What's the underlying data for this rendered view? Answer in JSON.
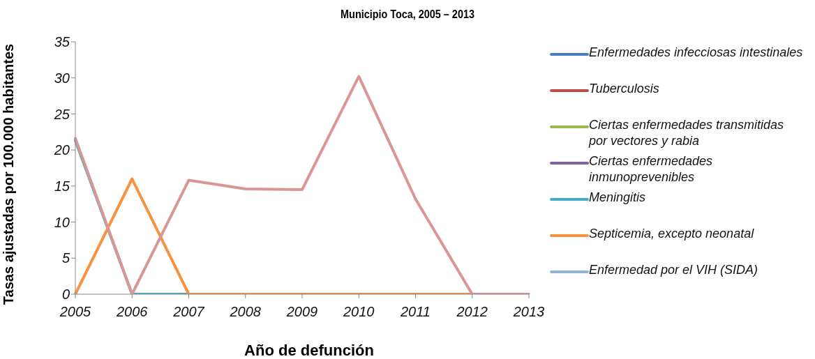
{
  "chart_data": {
    "type": "line",
    "title": "Municipio Toca, 2005 – 2013",
    "xlabel": "Año de defunción",
    "ylabel": "Tasas ajustadas por 100.000 habitantes",
    "categories": [
      "2005",
      "2006",
      "2007",
      "2008",
      "2009",
      "2010",
      "2011",
      "2012",
      "2013"
    ],
    "ylim": [
      0,
      35
    ],
    "yticks": [
      0,
      5,
      10,
      15,
      20,
      25,
      30,
      35
    ],
    "grid": false,
    "legend": "right",
    "marker": "none",
    "line_style": "solid",
    "series": [
      {
        "name": "Enfermedades infecciosas intestinales",
        "color": "#4a7ebb",
        "values": [
          null,
          null,
          null,
          null,
          null,
          null,
          null,
          null,
          null
        ]
      },
      {
        "name": "Tuberculosis",
        "color": "#be4b48",
        "values": [
          null,
          null,
          null,
          null,
          null,
          null,
          null,
          null,
          null
        ]
      },
      {
        "name": "Ciertas enfermedades transmitidas por vectores y rabia",
        "color": "#98b954",
        "values": [
          null,
          null,
          null,
          null,
          null,
          null,
          null,
          null,
          null
        ]
      },
      {
        "name": "Ciertas enfermedades inmunoprevenibles",
        "color": "#7d60a0",
        "values": [
          null,
          null,
          null,
          null,
          null,
          null,
          null,
          null,
          null
        ]
      },
      {
        "name": "Meningitis",
        "color": "#46aac5",
        "values": [
          21.3,
          0,
          0,
          null,
          null,
          null,
          null,
          null,
          null
        ]
      },
      {
        "name": "Septicemia, excepto neonatal",
        "color": "#f69240",
        "values": [
          0,
          16,
          0,
          0,
          0,
          0,
          0,
          0,
          null
        ]
      },
      {
        "name": "Enfermedad por el VIH (SIDA)",
        "color": "#95b3d7",
        "values": [
          null,
          null,
          null,
          null,
          null,
          null,
          null,
          null,
          null
        ]
      },
      {
        "color": "#d99694",
        "values": [
          21.6,
          0,
          15.8,
          14.6,
          14.5,
          30.2,
          13.2,
          0,
          0
        ]
      }
    ]
  }
}
